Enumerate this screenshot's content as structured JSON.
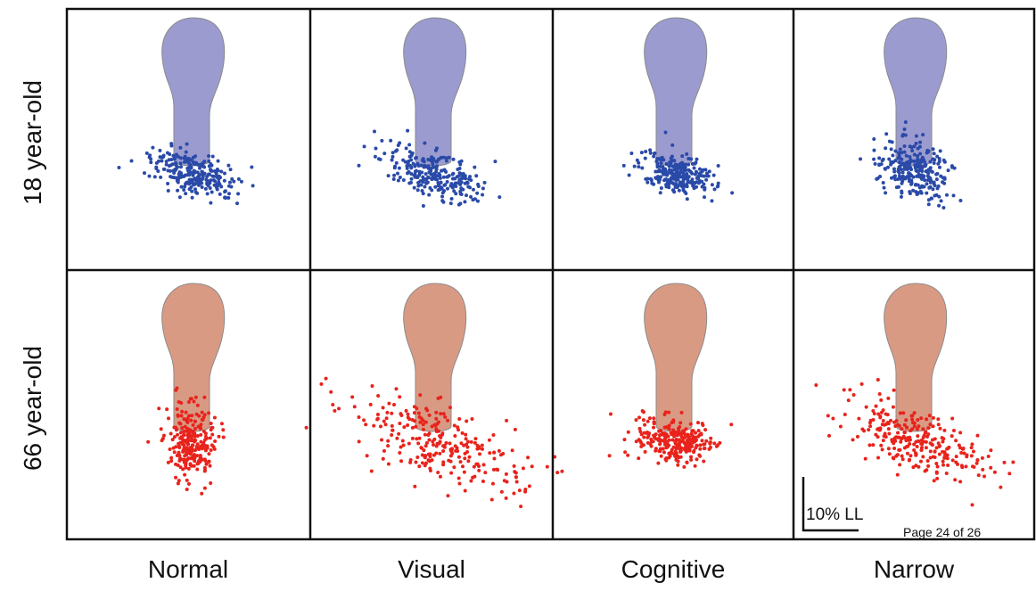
{
  "figure": {
    "row_labels": [
      "18 year-old",
      "66 year-old"
    ],
    "column_labels": [
      "Normal",
      "Visual",
      "Cognitive",
      "Narrow"
    ],
    "scale_label": "10% LL",
    "page_label": "Page 24 of 26"
  }
}
